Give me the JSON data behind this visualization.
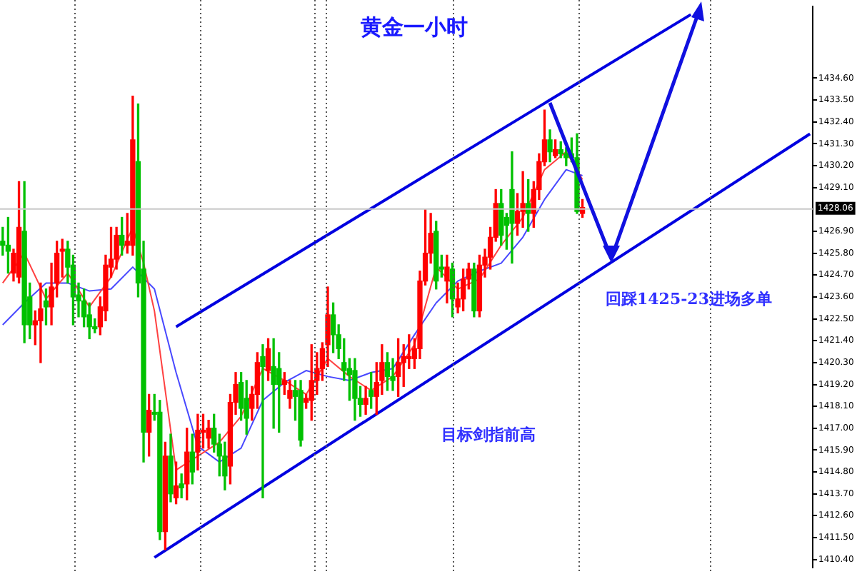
{
  "chart_data": {
    "type": "candlestick",
    "title": "黄金一小时",
    "categories": [
      null,
      null,
      null,
      null,
      null,
      null,
      null,
      null,
      null,
      null,
      null,
      null,
      null,
      null,
      null,
      null,
      null,
      null,
      null,
      null,
      null,
      null,
      null,
      null,
      null,
      null,
      null,
      null,
      null,
      null,
      null,
      null,
      null,
      null,
      null,
      null,
      null,
      null,
      null,
      null,
      null,
      null,
      null,
      null,
      null,
      null,
      null,
      null,
      null,
      null,
      null,
      null,
      null,
      null,
      null,
      null,
      null,
      null,
      null,
      null,
      null,
      null,
      null,
      null,
      null,
      null,
      null,
      null,
      null,
      null,
      null,
      null,
      null,
      null,
      null,
      null,
      null,
      null,
      null,
      null,
      null,
      null,
      null,
      null,
      null,
      null,
      null,
      null,
      null,
      null,
      null,
      null,
      null,
      null,
      null,
      null,
      null,
      null,
      null,
      null,
      null,
      null,
      null,
      null,
      null,
      null,
      null,
      null,
      null,
      null,
      null,
      null,
      null,
      null,
      null,
      null,
      null,
      null,
      null,
      null,
      null,
      null,
      null,
      null,
      null,
      null,
      null,
      null,
      null,
      null,
      null,
      null,
      null,
      null,
      null,
      null,
      null,
      null,
      null,
      null,
      null,
      null,
      null,
      null,
      null,
      null,
      null,
      null,
      null,
      null
    ],
    "ohlc": [
      [
        1426.4,
        1427.1,
        1425.7,
        1426.2
      ],
      [
        1426.2,
        1427.6,
        1424.8,
        1425.9
      ],
      [
        1424.8,
        1426.0,
        1424.4,
        1425.8
      ],
      [
        1424.6,
        1429.4,
        1424.3,
        1427.1
      ],
      [
        1426.9,
        1429.4,
        1421.3,
        1422.2
      ],
      [
        1423.6,
        1424.3,
        1421.5,
        1422.2
      ],
      [
        1422.2,
        1422.9,
        1421.2,
        1422.4
      ],
      [
        1422.4,
        1424.3,
        1420.3,
        1423.0
      ],
      [
        1423.4,
        1424.0,
        1422.2,
        1423.1
      ],
      [
        1423.1,
        1425.3,
        1422.2,
        1424.1
      ],
      [
        1424.3,
        1426.4,
        1423.6,
        1425.8
      ],
      [
        1425.9,
        1426.5,
        1424.6,
        1426.0
      ],
      [
        1426.0,
        1426.4,
        1424.3,
        1425.1
      ],
      [
        1425.2,
        1425.7,
        1422.2,
        1423.6
      ],
      [
        1423.7,
        1424.3,
        1422.6,
        1423.4
      ],
      [
        1423.4,
        1424.0,
        1422.1,
        1422.6
      ],
      [
        1422.7,
        1423.3,
        1421.5,
        1422.1
      ],
      [
        1422.1,
        1422.5,
        1421.8,
        1422.0
      ],
      [
        1422.1,
        1423.6,
        1421.7,
        1423.1
      ],
      [
        1422.9,
        1425.7,
        1422.4,
        1425.2
      ],
      [
        1425.1,
        1427.1,
        1424.6,
        1425.5
      ],
      [
        1425.5,
        1427.1,
        1425.0,
        1426.7
      ],
      [
        1426.7,
        1427.6,
        1425.7,
        1426.2
      ],
      [
        1426.2,
        1427.8,
        1425.8,
        1426.4
      ],
      [
        1426.2,
        1433.7,
        1425.7,
        1431.5
      ],
      [
        1430.4,
        1433.3,
        1423.6,
        1424.3
      ],
      [
        1425.0,
        1426.4,
        1415.3,
        1416.8
      ],
      [
        1416.8,
        1418.7,
        1415.6,
        1417.9
      ],
      [
        1417.8,
        1418.7,
        1417.4,
        1417.7
      ],
      [
        1417.8,
        1418.4,
        1411.4,
        1411.8
      ],
      [
        1411.8,
        1416.3,
        1410.9,
        1415.6
      ],
      [
        1415.6,
        1416.7,
        1413.3,
        1413.7
      ],
      [
        1413.5,
        1415.3,
        1413.2,
        1414.1
      ],
      [
        1414.2,
        1414.7,
        1413.5,
        1414.0
      ],
      [
        1414.2,
        1417.0,
        1413.4,
        1415.8
      ],
      [
        1415.8,
        1416.7,
        1414.2,
        1414.8
      ],
      [
        1415.8,
        1417.7,
        1414.9,
        1416.9
      ],
      [
        1416.8,
        1417.7,
        1416.0,
        1416.9
      ],
      [
        1416.5,
        1417.4,
        1416.0,
        1417.0
      ],
      [
        1417.0,
        1417.7,
        1415.8,
        1416.2
      ],
      [
        1416.2,
        1416.7,
        1414.6,
        1415.6
      ],
      [
        1415.6,
        1416.3,
        1413.9,
        1414.6
      ],
      [
        1415.1,
        1418.7,
        1414.2,
        1418.3
      ],
      [
        1418.3,
        1419.8,
        1417.7,
        1419.2
      ],
      [
        1419.3,
        1419.8,
        1417.4,
        1418.0
      ],
      [
        1418.5,
        1419.4,
        1416.7,
        1417.5
      ],
      [
        1418.0,
        1419.1,
        1417.4,
        1418.7
      ],
      [
        1418.7,
        1420.8,
        1418.0,
        1420.3
      ],
      [
        1420.6,
        1421.2,
        1413.5,
        1420.1
      ],
      [
        1419.9,
        1421.5,
        1419.4,
        1421.0
      ],
      [
        1420.1,
        1421.5,
        1417.0,
        1419.2
      ],
      [
        1420.0,
        1420.8,
        1416.8,
        1419.2
      ],
      [
        1419.2,
        1419.8,
        1418.7,
        1419.4
      ],
      [
        1418.5,
        1419.4,
        1418.0,
        1418.9
      ],
      [
        1418.9,
        1419.4,
        1417.4,
        1418.6
      ],
      [
        1418.9,
        1419.4,
        1416.1,
        1416.4
      ],
      [
        1418.3,
        1418.7,
        1418.0,
        1418.5
      ],
      [
        1418.4,
        1421.2,
        1417.4,
        1419.4
      ],
      [
        1419.4,
        1420.8,
        1418.7,
        1420.0
      ],
      [
        1420.0,
        1421.3,
        1419.4,
        1421.0
      ],
      [
        1421.2,
        1424.1,
        1420.1,
        1422.7
      ],
      [
        1422.7,
        1423.3,
        1420.8,
        1421.7
      ],
      [
        1421.7,
        1422.2,
        1420.5,
        1421.0
      ],
      [
        1420.3,
        1421.5,
        1419.4,
        1419.9
      ],
      [
        1420.0,
        1420.5,
        1418.4,
        1419.7
      ],
      [
        1419.9,
        1420.5,
        1417.4,
        1418.5
      ],
      [
        1418.5,
        1419.1,
        1417.6,
        1418.2
      ],
      [
        1418.2,
        1419.1,
        1417.7,
        1418.5
      ],
      [
        1418.9,
        1419.8,
        1418.0,
        1418.6
      ],
      [
        1418.6,
        1420.3,
        1417.7,
        1419.3
      ],
      [
        1419.4,
        1421.2,
        1418.7,
        1420.3
      ],
      [
        1420.3,
        1420.8,
        1418.9,
        1419.6
      ],
      [
        1419.6,
        1420.5,
        1418.9,
        1419.4
      ],
      [
        1419.6,
        1421.5,
        1418.6,
        1420.3
      ],
      [
        1420.3,
        1421.2,
        1419.1,
        1420.6
      ],
      [
        1420.5,
        1421.7,
        1420.0,
        1420.6
      ],
      [
        1420.5,
        1421.5,
        1420.0,
        1421.0
      ],
      [
        1421.0,
        1424.9,
        1420.5,
        1424.4
      ],
      [
        1424.4,
        1428.0,
        1424.2,
        1425.8
      ],
      [
        1425.8,
        1427.8,
        1425.3,
        1426.8
      ],
      [
        1426.9,
        1427.4,
        1424.0,
        1424.4
      ],
      [
        1425.1,
        1425.7,
        1424.6,
        1425.0
      ],
      [
        1424.4,
        1425.7,
        1423.3,
        1425.1
      ],
      [
        1425.0,
        1425.3,
        1422.6,
        1423.5
      ],
      [
        1423.1,
        1424.3,
        1422.8,
        1423.5
      ],
      [
        1423.5,
        1425.0,
        1422.9,
        1424.5
      ],
      [
        1424.5,
        1425.3,
        1424.0,
        1425.0
      ],
      [
        1425.0,
        1425.3,
        1422.6,
        1422.9
      ],
      [
        1422.9,
        1425.7,
        1422.6,
        1425.2
      ],
      [
        1425.2,
        1426.0,
        1424.6,
        1425.6
      ],
      [
        1425.6,
        1427.1,
        1425.0,
        1426.6
      ],
      [
        1426.6,
        1429.0,
        1426.4,
        1428.3
      ],
      [
        1428.3,
        1429.0,
        1426.2,
        1426.7
      ],
      [
        1427.6,
        1427.8,
        1426.0,
        1427.2
      ],
      [
        1429.0,
        1430.9,
        1425.3,
        1427.3
      ],
      [
        1427.3,
        1428.8,
        1426.7,
        1427.9
      ],
      [
        1427.9,
        1429.9,
        1427.1,
        1428.3
      ],
      [
        1428.3,
        1429.5,
        1426.9,
        1427.8
      ],
      [
        1427.8,
        1429.4,
        1427.1,
        1429.0
      ],
      [
        1429.0,
        1430.8,
        1428.5,
        1430.4
      ],
      [
        1430.4,
        1433.0,
        1430.2,
        1431.5
      ],
      [
        1431.5,
        1432.0,
        1430.4,
        1430.9
      ],
      [
        1430.7,
        1431.5,
        1430.6,
        1431.0
      ],
      [
        1431.0,
        1431.4,
        1430.6,
        1430.8
      ],
      [
        1430.8,
        1431.1,
        1430.2,
        1430.6
      ],
      [
        1430.8,
        1431.6,
        1430.4,
        1430.6
      ],
      [
        1430.6,
        1431.8,
        1427.8,
        1427.9
      ],
      [
        1427.8,
        1428.5,
        1427.6,
        1428.1
      ],
      null,
      null,
      null,
      null,
      null,
      null,
      null,
      null,
      null,
      null,
      null,
      null,
      null,
      null,
      null,
      null,
      null,
      null,
      null,
      null,
      null,
      null,
      null,
      null,
      null,
      null,
      null,
      null,
      null,
      null,
      null,
      null,
      null,
      null,
      null,
      null,
      null,
      null,
      null,
      null,
      null,
      null
    ],
    "colors": [
      "#00c000",
      "#00c000",
      "#ff0000",
      "#ff0000",
      "#00c000",
      "#00c000",
      "#ff0000",
      "#ff0000",
      "#00c000",
      "#ff0000",
      "#ff0000",
      "#ff0000",
      "#00c000",
      "#00c000",
      "#00c000",
      "#00c000",
      "#00c000",
      "#00c000",
      "#ff0000",
      "#ff0000",
      "#ff0000",
      "#ff0000",
      "#00c000",
      "#ff0000",
      "#ff0000",
      "#00c000",
      "#00c000",
      "#ff0000",
      "#00c000",
      "#00c000",
      "#ff0000",
      "#00c000",
      "#ff0000",
      "#00c000",
      "#ff0000",
      "#00c000",
      "#ff0000",
      "#ff0000",
      "#ff0000",
      "#00c000",
      "#00c000",
      "#00c000",
      "#ff0000",
      "#ff0000",
      "#00c000",
      "#00c000",
      "#ff0000",
      "#ff0000",
      "#00c000",
      "#ff0000",
      "#00c000",
      "#00c000",
      "#ff0000",
      "#ff0000",
      "#00c000",
      "#00c000",
      "#ff0000",
      "#ff0000",
      "#ff0000",
      "#ff0000",
      "#ff0000",
      "#00c000",
      "#00c000",
      "#00c000",
      "#00c000",
      "#00c000",
      "#00c000",
      "#ff0000",
      "#00c000",
      "#ff0000",
      "#ff0000",
      "#00c000",
      "#00c000",
      "#ff0000",
      "#ff0000",
      "#ff0000",
      "#ff0000",
      "#ff0000",
      "#ff0000",
      "#ff0000",
      "#00c000",
      "#00c000",
      "#ff0000",
      "#00c000",
      "#ff0000",
      "#ff0000",
      "#ff0000",
      "#00c000",
      "#ff0000",
      "#ff0000",
      "#ff0000",
      "#ff0000",
      "#00c000",
      "#00c000",
      "#00c000",
      "#ff0000",
      "#ff0000",
      "#00c000",
      "#ff0000",
      "#ff0000",
      "#ff0000",
      "#00c000",
      "#ff0000",
      "#00c000",
      "#00c000",
      "#00c000",
      "#00c000",
      "#ff0000",
      null,
      null,
      null,
      null,
      null,
      null,
      null,
      null,
      null,
      null,
      null,
      null,
      null,
      null,
      null,
      null,
      null,
      null,
      null,
      null,
      null,
      null,
      null,
      null,
      null,
      null,
      null,
      null,
      null,
      null,
      null,
      null,
      null,
      null,
      null,
      null,
      null,
      null,
      null,
      null,
      null,
      null
    ],
    "series": [
      {
        "type": "line",
        "color": "#ff4040",
        "values": [
          1424.3,
          null,
          null,
          null,
          1425.8,
          null,
          null,
          null,
          1423.5,
          null,
          null,
          null,
          1424.8,
          null,
          null,
          null,
          1423.1,
          null,
          null,
          null,
          1424.6,
          null,
          null,
          null,
          1427.1,
          null,
          1425.3,
          null,
          1422.9,
          null,
          null,
          null,
          1414.9,
          null,
          null,
          null,
          1415.6,
          null,
          null,
          null,
          1416.3,
          null,
          null,
          null,
          1417.6,
          null,
          null,
          null,
          1420.0,
          null,
          null,
          null,
          1419.4,
          null,
          null,
          null,
          1418.7,
          null,
          null,
          null,
          1420.5,
          null,
          null,
          null,
          1419.6,
          null,
          null,
          null,
          1418.9,
          null,
          null,
          null,
          1419.6,
          null,
          null,
          null,
          1421.2,
          null,
          null,
          null,
          1425.1,
          null,
          null,
          null,
          1424.0,
          null,
          null,
          null,
          1424.5,
          null,
          null,
          null,
          1426.2,
          null,
          null,
          null,
          1427.6,
          null,
          null,
          null,
          1430.0,
          null,
          null,
          null,
          1430.9,
          null,
          null,
          1429.5,
          null,
          null,
          null,
          null,
          null,
          null,
          null,
          null,
          null,
          null,
          null,
          null,
          null,
          null,
          null,
          null,
          null,
          null,
          null,
          null,
          null,
          null,
          null,
          null,
          null,
          null,
          null,
          null,
          null,
          null,
          null,
          null,
          null,
          null,
          null,
          null,
          null,
          null,
          null,
          null,
          null,
          null
        ]
      },
      {
        "type": "line",
        "color": "#4848ff",
        "values": [
          1422.2,
          null,
          null,
          null,
          1423.3,
          null,
          null,
          null,
          1424.3,
          null,
          null,
          null,
          1424.3,
          null,
          null,
          null,
          1423.9,
          null,
          null,
          null,
          1424.0,
          null,
          null,
          null,
          1425.1,
          null,
          null,
          null,
          1424.0,
          null,
          null,
          null,
          1419.8,
          null,
          null,
          null,
          1416.1,
          null,
          null,
          null,
          1415.3,
          null,
          null,
          null,
          1416.0,
          null,
          null,
          null,
          1418.4,
          null,
          null,
          null,
          1419.3,
          null,
          null,
          null,
          1419.9,
          null,
          null,
          null,
          1419.6,
          null,
          null,
          null,
          1419.4,
          null,
          null,
          null,
          1419.8,
          null,
          null,
          null,
          1420.0,
          null,
          null,
          null,
          1421.7,
          null,
          null,
          null,
          1423.3,
          null,
          null,
          null,
          1424.4,
          null,
          null,
          null,
          1424.9,
          null,
          null,
          null,
          1425.3,
          null,
          null,
          null,
          1426.6,
          null,
          null,
          null,
          1428.5,
          null,
          null,
          null,
          1430.0,
          null,
          null,
          1429.7,
          null,
          null,
          null,
          null,
          null,
          null,
          null,
          null,
          null,
          null,
          null,
          null,
          null,
          null,
          null,
          null,
          null,
          null,
          null,
          null,
          null,
          null,
          null,
          null,
          null,
          null,
          null,
          null,
          null,
          null,
          null,
          null,
          null,
          null,
          null,
          null,
          null,
          null,
          null,
          null,
          null,
          null
        ]
      },
      {
        "type": "line",
        "color": "#0000e0",
        "values": [
          null,
          null,
          null,
          null,
          null,
          null,
          null,
          null,
          null,
          null,
          null,
          null,
          null,
          null,
          null,
          null,
          null,
          null,
          null,
          null,
          null,
          null,
          null,
          null,
          null,
          null,
          null,
          null,
          null,
          null,
          null,
          null,
          1422.1,
          null,
          null,
          null,
          null,
          null,
          null,
          null,
          null,
          null,
          null,
          null,
          null,
          null,
          null,
          null,
          null,
          null,
          null,
          null,
          null,
          null,
          null,
          null,
          null,
          null,
          null,
          null,
          null,
          null,
          null,
          null,
          null,
          null,
          null,
          null,
          null,
          null,
          null,
          null,
          null,
          null,
          null,
          null,
          null,
          null,
          null,
          null,
          null,
          null,
          null,
          null,
          null,
          null,
          null,
          null,
          null,
          null,
          null,
          null,
          null,
          null,
          null,
          null,
          null,
          null,
          null,
          null,
          null,
          null,
          null,
          null,
          null,
          null,
          null,
          null,
          null,
          null,
          null,
          null,
          null,
          null,
          null,
          null,
          null,
          null,
          null,
          null,
          null,
          null,
          null,
          null,
          null,
          null,
          null,
          1437.8,
          null,
          null,
          null,
          null,
          null,
          null,
          null,
          null,
          null,
          null,
          null,
          null,
          null,
          null,
          null,
          null,
          null,
          null,
          null,
          null,
          null,
          null
        ]
      },
      {
        "type": "line",
        "color": "#0000e0",
        "values": [
          null,
          null,
          null,
          null,
          null,
          null,
          null,
          null,
          null,
          null,
          null,
          null,
          null,
          null,
          null,
          null,
          null,
          null,
          null,
          null,
          null,
          null,
          null,
          null,
          null,
          null,
          null,
          null,
          1410.5,
          null,
          null,
          null,
          null,
          null,
          null,
          null,
          null,
          null,
          null,
          null,
          null,
          null,
          null,
          null,
          null,
          null,
          null,
          null,
          null,
          null,
          null,
          null,
          null,
          null,
          null,
          null,
          null,
          null,
          null,
          null,
          null,
          null,
          null,
          null,
          null,
          null,
          null,
          null,
          null,
          null,
          null,
          null,
          null,
          null,
          null,
          null,
          null,
          null,
          null,
          null,
          null,
          null,
          null,
          null,
          null,
          null,
          null,
          null,
          null,
          null,
          null,
          null,
          null,
          null,
          null,
          null,
          null,
          null,
          null,
          null,
          null,
          null,
          null,
          null,
          null,
          null,
          null,
          null,
          null,
          null,
          null,
          null,
          null,
          null,
          null,
          null,
          null,
          null,
          null,
          null,
          null,
          null,
          null,
          null,
          null,
          null,
          null,
          null,
          null,
          null,
          null,
          null,
          null,
          null,
          null,
          null,
          null,
          null,
          null,
          null,
          null,
          null,
          null,
          null,
          null,
          null,
          null,
          null,
          null,
          1431.8
        ]
      }
    ],
    "ylim": [
      1410.0,
      1438.2
    ],
    "yticks": [
      {
        "value": 1410.4,
        "label": "1410.40"
      },
      {
        "value": 1411.5,
        "label": "1411.50"
      },
      {
        "value": 1412.6,
        "label": "1412.60"
      },
      {
        "value": 1413.7,
        "label": "1413.70"
      },
      {
        "value": 1414.8,
        "label": "1414.80"
      },
      {
        "value": 1415.9,
        "label": "1415.90"
      },
      {
        "value": 1417.0,
        "label": "1417.00"
      },
      {
        "value": 1418.1,
        "label": "1418.10"
      },
      {
        "value": 1419.2,
        "label": "1419.20"
      },
      {
        "value": 1420.3,
        "label": "1420.30"
      },
      {
        "value": 1421.4,
        "label": "1421.40"
      },
      {
        "value": 1422.5,
        "label": "1422.50"
      },
      {
        "value": 1423.6,
        "label": "1423.60"
      },
      {
        "value": 1424.7,
        "label": "1424.70"
      },
      {
        "value": 1425.8,
        "label": "1425.80"
      },
      {
        "value": 1426.9,
        "label": "1426.90"
      },
      {
        "value": 1429.1,
        "label": "1429.10"
      },
      {
        "value": 1430.2,
        "label": "1430.20"
      },
      {
        "value": 1431.3,
        "label": "1431.30"
      },
      {
        "value": 1432.4,
        "label": "1432.40"
      },
      {
        "value": 1433.5,
        "label": "1433.50"
      },
      {
        "value": 1434.6,
        "label": "1434.60"
      }
    ],
    "tick_labels": "y",
    "ref_lines": [
      {
        "axis": "y",
        "value": 1428.06,
        "label": "1428.06",
        "color": "#c8c8c8"
      }
    ],
    "annotations": [
      "目标剑指前高",
      "回踩1425-23进场多单"
    ]
  }
}
